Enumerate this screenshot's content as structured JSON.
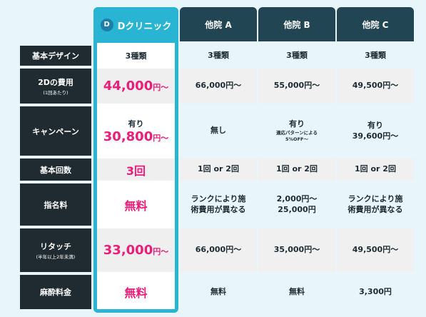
{
  "header": {
    "clinic": {
      "logo_letter": "D",
      "name": "Dクリニック"
    },
    "others": [
      "他院 A",
      "他院 B",
      "他院 C"
    ]
  },
  "rows": [
    {
      "label": "基本デザイン",
      "sub": "",
      "featured": "3種類",
      "others": [
        "3種類",
        "3種類",
        "3種類"
      ]
    },
    {
      "label": "2Dの費用",
      "sub": "(1回あたり)",
      "featured_amount": "44,000",
      "featured_unit": "円〜",
      "others": [
        "66,000円〜",
        "55,000円〜",
        "49,500円〜"
      ]
    },
    {
      "label": "キャンペーン",
      "sub": "",
      "featured_top": "有り",
      "featured_amount": "30,800",
      "featured_unit": "円〜",
      "others": [
        {
          "main": "無し"
        },
        {
          "main": "有り",
          "note": "適応パターンによる",
          "note2": "5%OFF〜"
        },
        {
          "main": "有り",
          "line2": "39,600円〜"
        }
      ]
    },
    {
      "label": "基本回数",
      "sub": "",
      "featured": "3回",
      "others": [
        "1回 or 2回",
        "1回 or 2回",
        "1回 or 2回"
      ]
    },
    {
      "label": "指名料",
      "sub": "",
      "featured": "無料",
      "others": [
        {
          "l1": "ランクにより施",
          "l2": "術費用が異なる"
        },
        {
          "l1": "2,000円〜",
          "l2": "25,000円"
        },
        {
          "l1": "ランクにより施",
          "l2": "術費用が異なる"
        }
      ]
    },
    {
      "label": "リタッチ",
      "sub": "(半年以上2年未満)",
      "featured_amount": "33,000",
      "featured_unit": "円〜",
      "others": [
        "66,000円〜",
        "35,000円〜",
        "49,500円〜"
      ]
    },
    {
      "label": "麻酔料金",
      "sub": "",
      "featured": "無料",
      "others": [
        "無料",
        "無料",
        "3,300円"
      ]
    }
  ]
}
